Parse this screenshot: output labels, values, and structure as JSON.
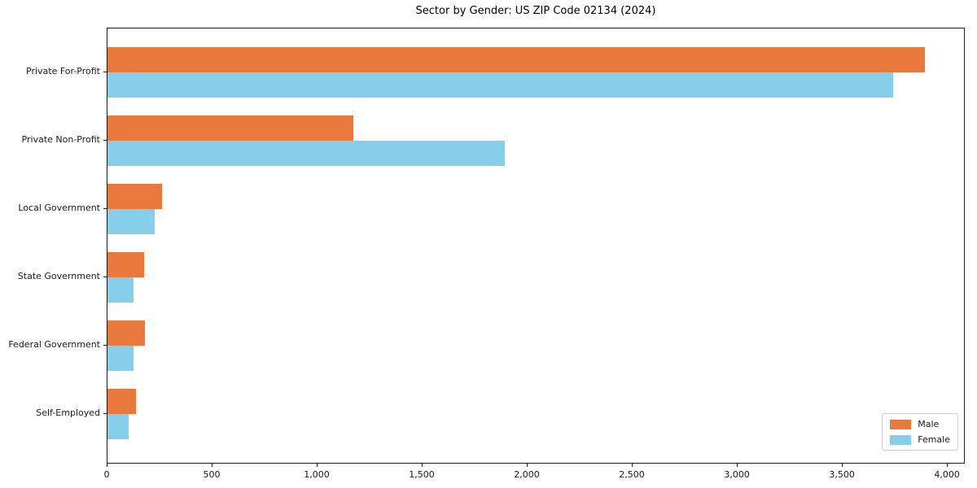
{
  "chart_data": {
    "type": "bar",
    "orientation": "horizontal",
    "title": "Sector by Gender: US ZIP Code 02134 (2024)",
    "categories": [
      "Private For-Profit",
      "Private Non-Profit",
      "Local Government",
      "State Government",
      "Federal Government",
      "Self-Employed"
    ],
    "series": [
      {
        "name": "Male",
        "color": "#e8783c",
        "values": [
          3890,
          1170,
          260,
          175,
          180,
          135
        ]
      },
      {
        "name": "Female",
        "color": "#87ceeb",
        "values": [
          3740,
          1890,
          225,
          125,
          125,
          100
        ]
      }
    ],
    "xlabel": "",
    "ylabel": "",
    "xlim": [
      0,
      4085
    ],
    "xticks": [
      0,
      500,
      1000,
      1500,
      2000,
      2500,
      3000,
      3500,
      4000
    ],
    "xtick_labels": [
      "0",
      "500",
      "1,000",
      "1,500",
      "2,000",
      "2,500",
      "3,000",
      "3,500",
      "4,000"
    ],
    "grid": false,
    "legend": {
      "position": "lower right",
      "entries": [
        "Male",
        "Female"
      ]
    }
  },
  "colors": {
    "male": "#e8783c",
    "female": "#87ceeb",
    "axis": "#1a1a1a",
    "legend_border": "#cccccc",
    "background": "#ffffff"
  }
}
